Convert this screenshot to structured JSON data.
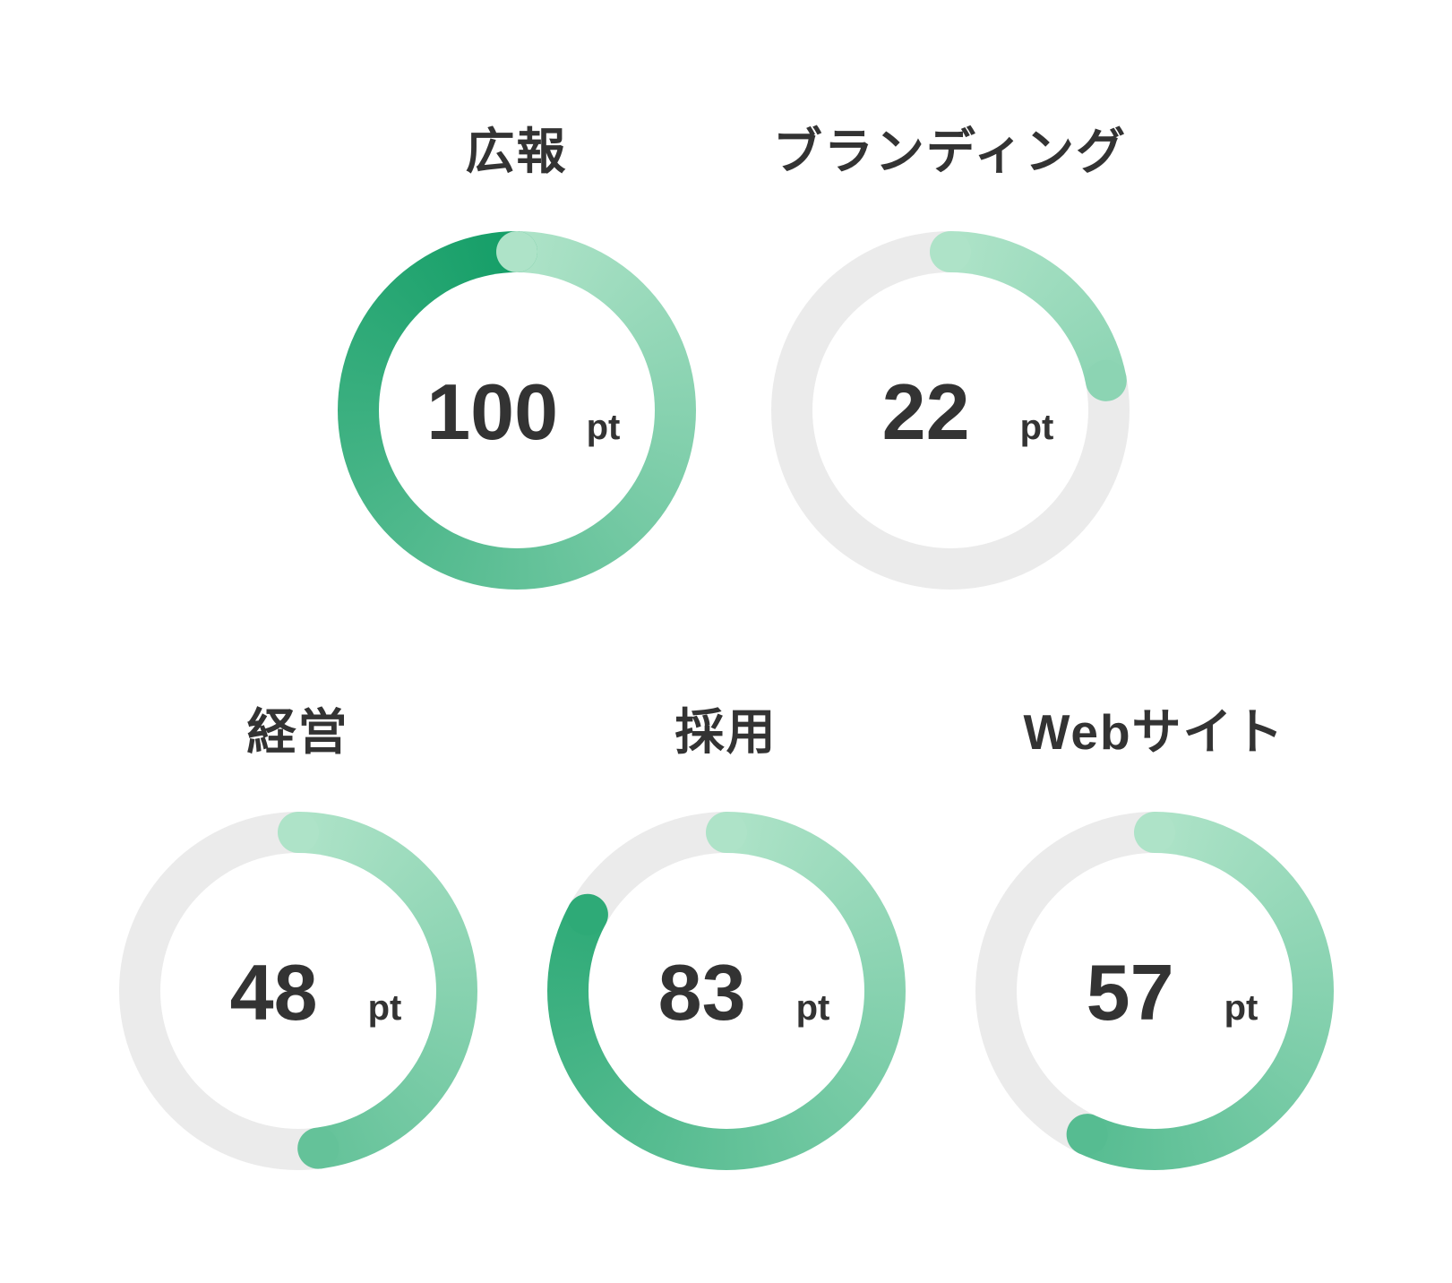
{
  "page": {
    "background_color": "#ffffff"
  },
  "chart_data": {
    "type": "donut-gauge-group",
    "description": "Five circular progress (donut) gauges with point scores",
    "max_value": 100,
    "start_angle_deg": 0,
    "direction": "clockwise",
    "legend_position": "none",
    "colors": {
      "track": "#ebebeb",
      "arc_gradient_start": "#aee3c8",
      "arc_gradient_end": "#149e67",
      "value_text": "#333333",
      "title_text": "#333333",
      "background": "#ffffff"
    },
    "gauges": [
      {
        "title": "広報",
        "value": 100,
        "unit": "pt",
        "row": 1
      },
      {
        "title": "ブランディング",
        "value": 22,
        "unit": "pt",
        "row": 1
      },
      {
        "title": "経営",
        "value": 48,
        "unit": "pt",
        "row": 2
      },
      {
        "title": "採用",
        "value": 83,
        "unit": "pt",
        "row": 2
      },
      {
        "title": "Webサイト",
        "value": 57,
        "unit": "pt",
        "row": 2
      }
    ]
  }
}
